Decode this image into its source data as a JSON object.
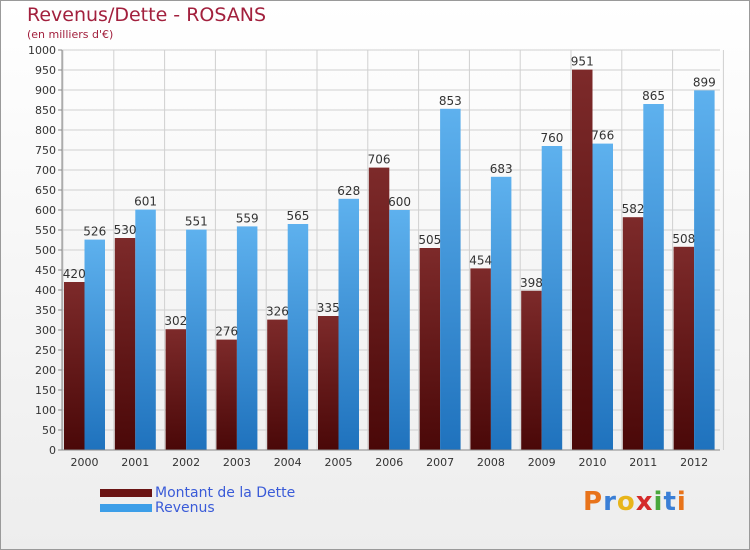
{
  "chart_data": {
    "type": "bar",
    "title": "Revenus/Dette - ROSANS",
    "subtitle": "(en milliers d'€)",
    "categories": [
      "2000",
      "2001",
      "2002",
      "2003",
      "2004",
      "2005",
      "2006",
      "2007",
      "2008",
      "2009",
      "2010",
      "2011",
      "2012"
    ],
    "series": [
      {
        "name": "Montant de la Dette",
        "color": "#7a1e1e",
        "values": [
          420,
          530,
          302,
          276,
          326,
          335,
          706,
          505,
          454,
          398,
          951,
          582,
          508
        ]
      },
      {
        "name": "Revenus",
        "color": "#3c9ee8",
        "values": [
          526,
          601,
          551,
          559,
          565,
          628,
          600,
          853,
          683,
          760,
          766,
          865,
          899
        ]
      }
    ],
    "ylim": [
      0,
      1000
    ],
    "ytick_step": 50,
    "grid": true,
    "legend": "bottom-left"
  },
  "logo": {
    "letters": [
      "P",
      "r",
      "o",
      "x",
      "i",
      "t",
      "i"
    ],
    "colors": [
      "#e8731a",
      "#3a7fd6",
      "#e8b51a",
      "#d42a2a",
      "#4aa83c",
      "#3a7fd6",
      "#e8731a"
    ]
  }
}
